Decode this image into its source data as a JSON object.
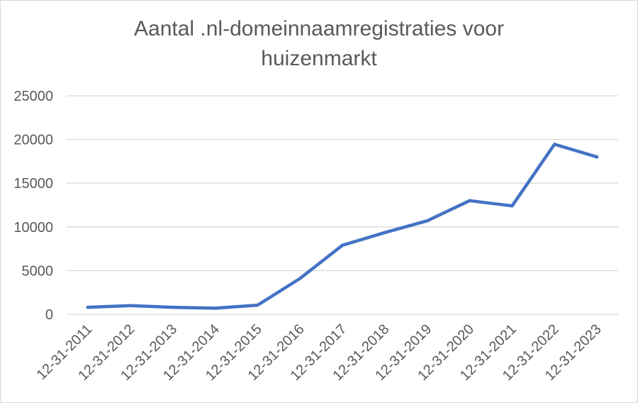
{
  "chart_data": {
    "type": "line",
    "title_lines": [
      "Aantal .nl-domeinnaamregistraties voor",
      "huizenmarkt"
    ],
    "xlabel": "",
    "ylabel": "",
    "categories": [
      "12-31-2011",
      "12-31-2012",
      "12-31-2013",
      "12-31-2014",
      "12-31-2015",
      "12-31-2016",
      "12-31-2017",
      "12-31-2018",
      "12-31-2019",
      "12-31-2020",
      "12-31-2021",
      "12-31-2022",
      "12-31-2023"
    ],
    "series": [
      {
        "values": [
          800,
          1000,
          800,
          700,
          1050,
          4100,
          7900,
          9350,
          10700,
          13000,
          12400,
          19450,
          18000
        ]
      }
    ],
    "ylim": [
      0,
      25000
    ],
    "yticks": [
      "0",
      "5000",
      "10000",
      "15000",
      "20000",
      "25000"
    ],
    "grid": "horizontal",
    "legend": "none",
    "line_color": "#4472c4",
    "grid_color": "#d9d9d9",
    "text_color": "#595959"
  }
}
